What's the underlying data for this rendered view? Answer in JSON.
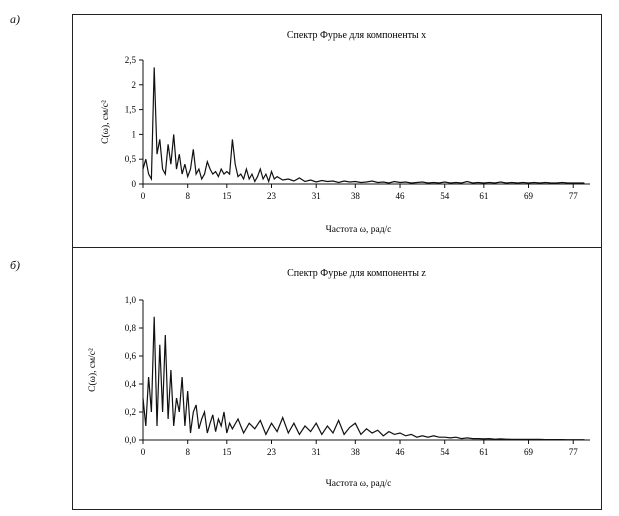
{
  "panels": {
    "a": {
      "letter": "а)"
    },
    "b": {
      "letter": "б)"
    }
  },
  "chart_data": [
    {
      "type": "line",
      "title": "Спектр Фурье для компоненты x",
      "xlabel": "Частота ω, рад/с",
      "ylabel": "C(ω), см/с²",
      "xlim": [
        0,
        80
      ],
      "ylim": [
        0,
        2.5
      ],
      "xticks": [
        "0",
        "8",
        "15",
        "23",
        "31",
        "38",
        "46",
        "54",
        "61",
        "69",
        "77"
      ],
      "yticks": [
        "0",
        "0,5",
        "1",
        "1,5",
        "2",
        "2,5"
      ],
      "grid": false,
      "series": [
        {
          "values_note": "",
          "x": [
            0,
            0.5,
            1,
            1.5,
            2,
            2.5,
            3,
            3.5,
            4,
            4.5,
            5,
            5.5,
            6,
            6.5,
            7,
            7.5,
            8,
            8.5,
            9,
            9.5,
            10,
            10.5,
            11,
            11.5,
            12,
            12.5,
            13,
            13.5,
            14,
            14.5,
            15,
            15.5,
            16,
            16.5,
            17,
            17.5,
            18,
            18.5,
            19,
            19.5,
            20,
            20.5,
            21,
            21.5,
            22,
            22.5,
            23,
            23.5,
            24,
            25,
            26,
            27,
            28,
            29,
            30,
            31,
            32,
            33,
            34,
            35,
            36,
            37,
            38,
            39,
            40,
            41,
            42,
            43,
            44,
            45,
            46,
            47,
            48,
            49,
            50,
            51,
            52,
            53,
            54,
            55,
            56,
            57,
            58,
            59,
            60,
            61,
            62,
            63,
            64,
            65,
            66,
            67,
            68,
            69,
            70,
            71,
            72,
            73,
            74,
            75,
            76,
            77,
            78,
            79
          ],
          "y": [
            0.3,
            0.5,
            0.2,
            0.1,
            2.35,
            0.6,
            0.9,
            0.3,
            0.2,
            0.8,
            0.4,
            1.0,
            0.3,
            0.6,
            0.2,
            0.4,
            0.15,
            0.3,
            0.7,
            0.2,
            0.3,
            0.1,
            0.2,
            0.45,
            0.3,
            0.2,
            0.25,
            0.15,
            0.3,
            0.2,
            0.25,
            0.2,
            0.9,
            0.4,
            0.15,
            0.2,
            0.1,
            0.3,
            0.1,
            0.2,
            0.05,
            0.15,
            0.3,
            0.1,
            0.2,
            0.05,
            0.25,
            0.1,
            0.15,
            0.08,
            0.1,
            0.06,
            0.12,
            0.05,
            0.08,
            0.04,
            0.07,
            0.05,
            0.06,
            0.03,
            0.06,
            0.04,
            0.05,
            0.03,
            0.04,
            0.06,
            0.03,
            0.04,
            0.02,
            0.05,
            0.03,
            0.04,
            0.02,
            0.03,
            0.04,
            0.02,
            0.03,
            0.02,
            0.04,
            0.02,
            0.03,
            0.02,
            0.05,
            0.02,
            0.03,
            0.02,
            0.03,
            0.02,
            0.04,
            0.02,
            0.03,
            0.02,
            0.03,
            0.02,
            0.03,
            0.02,
            0.03,
            0.02,
            0.02,
            0.03,
            0.02,
            0.02,
            0.02,
            0.02
          ]
        }
      ]
    },
    {
      "type": "line",
      "title": "Спектр Фурье для компоненты z",
      "xlabel": "Частота ω, рад/с",
      "ylabel": "C(ω), см/с²",
      "xlim": [
        0,
        80
      ],
      "ylim": [
        0,
        1.0
      ],
      "xticks": [
        "0",
        "8",
        "15",
        "23",
        "31",
        "38",
        "46",
        "54",
        "61",
        "69",
        "77"
      ],
      "yticks": [
        "0,0",
        "0,2",
        "0,4",
        "0,6",
        "0,8",
        "1,0"
      ],
      "grid": false,
      "series": [
        {
          "values_note": "",
          "x": [
            0,
            0.5,
            1,
            1.5,
            2,
            2.5,
            3,
            3.5,
            4,
            4.5,
            5,
            5.5,
            6,
            6.5,
            7,
            7.5,
            8,
            8.5,
            9,
            9.5,
            10,
            10.5,
            11,
            11.5,
            12,
            12.5,
            13,
            13.5,
            14,
            14.5,
            15,
            15.5,
            16,
            17,
            18,
            19,
            20,
            21,
            22,
            23,
            24,
            25,
            26,
            27,
            28,
            29,
            30,
            31,
            32,
            33,
            34,
            35,
            36,
            37,
            38,
            39,
            40,
            41,
            42,
            43,
            44,
            45,
            46,
            47,
            48,
            49,
            50,
            51,
            52,
            53,
            54,
            55,
            56,
            57,
            58,
            59,
            60,
            61,
            62,
            63,
            64,
            65,
            66,
            67,
            68,
            69,
            70,
            71,
            72,
            73,
            74,
            75,
            76,
            77,
            78,
            79
          ],
          "y": [
            0.3,
            0.1,
            0.45,
            0.2,
            0.88,
            0.1,
            0.68,
            0.2,
            0.75,
            0.15,
            0.5,
            0.1,
            0.3,
            0.2,
            0.45,
            0.1,
            0.35,
            0.05,
            0.2,
            0.25,
            0.08,
            0.15,
            0.2,
            0.05,
            0.12,
            0.18,
            0.06,
            0.15,
            0.1,
            0.2,
            0.05,
            0.12,
            0.08,
            0.15,
            0.05,
            0.12,
            0.08,
            0.14,
            0.04,
            0.12,
            0.06,
            0.16,
            0.05,
            0.12,
            0.04,
            0.1,
            0.06,
            0.12,
            0.04,
            0.1,
            0.05,
            0.14,
            0.04,
            0.09,
            0.12,
            0.04,
            0.08,
            0.05,
            0.07,
            0.03,
            0.06,
            0.04,
            0.05,
            0.03,
            0.04,
            0.02,
            0.03,
            0.02,
            0.03,
            0.02,
            0.02,
            0.015,
            0.02,
            0.01,
            0.015,
            0.01,
            0.01,
            0.008,
            0.01,
            0.006,
            0.008,
            0.006,
            0.005,
            0.005,
            0.004,
            0.005,
            0.004,
            0.004,
            0.003,
            0.003,
            0.003,
            0.003,
            0.002,
            0.002,
            0.002,
            0.002
          ]
        }
      ]
    }
  ]
}
